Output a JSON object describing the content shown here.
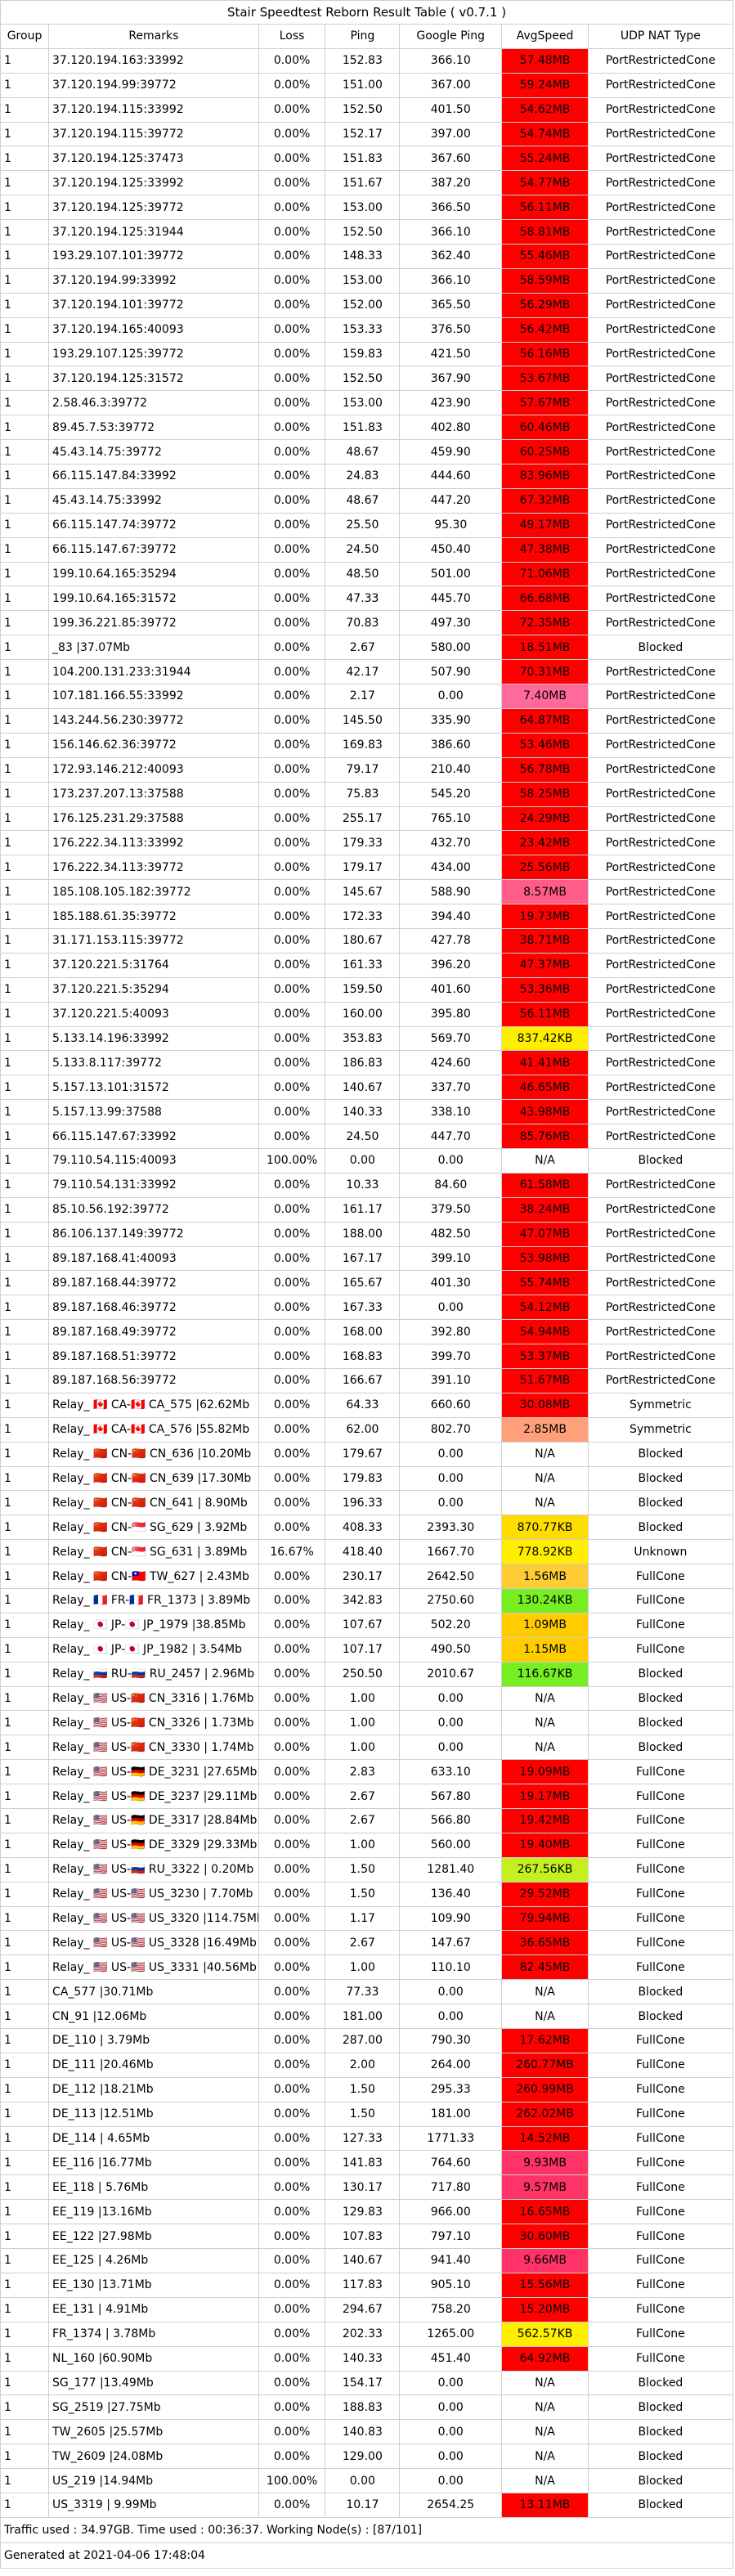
{
  "title": "Stair Speedtest Reborn Result Table ( v0.7.1 )",
  "headers": [
    "Group",
    "Remarks",
    "Loss",
    "Ping",
    "Google Ping",
    "AvgSpeed",
    "UDP NAT Type"
  ],
  "rows": [
    [
      "1",
      "37.120.194.163:33992",
      "0.00%",
      "152.83",
      "366.10",
      "57.48MB",
      "PortRestrictedCone"
    ],
    [
      "1",
      "37.120.194.99:39772",
      "0.00%",
      "151.00",
      "367.00",
      "59.24MB",
      "PortRestrictedCone"
    ],
    [
      "1",
      "37.120.194.115:33992",
      "0.00%",
      "152.50",
      "401.50",
      "54.62MB",
      "PortRestrictedCone"
    ],
    [
      "1",
      "37.120.194.115:39772",
      "0.00%",
      "152.17",
      "397.00",
      "54.74MB",
      "PortRestrictedCone"
    ],
    [
      "1",
      "37.120.194.125:37473",
      "0.00%",
      "151.83",
      "367.60",
      "55.24MB",
      "PortRestrictedCone"
    ],
    [
      "1",
      "37.120.194.125:33992",
      "0.00%",
      "151.67",
      "387.20",
      "54.77MB",
      "PortRestrictedCone"
    ],
    [
      "1",
      "37.120.194.125:39772",
      "0.00%",
      "153.00",
      "366.50",
      "56.11MB",
      "PortRestrictedCone"
    ],
    [
      "1",
      "37.120.194.125:31944",
      "0.00%",
      "152.50",
      "366.10",
      "58.81MB",
      "PortRestrictedCone"
    ],
    [
      "1",
      "193.29.107.101:39772",
      "0.00%",
      "148.33",
      "362.40",
      "55.46MB",
      "PortRestrictedCone"
    ],
    [
      "1",
      "37.120.194.99:33992",
      "0.00%",
      "153.00",
      "366.10",
      "58.59MB",
      "PortRestrictedCone"
    ],
    [
      "1",
      "37.120.194.101:39772",
      "0.00%",
      "152.00",
      "365.50",
      "56.29MB",
      "PortRestrictedCone"
    ],
    [
      "1",
      "37.120.194.165:40093",
      "0.00%",
      "153.33",
      "376.50",
      "56.42MB",
      "PortRestrictedCone"
    ],
    [
      "1",
      "193.29.107.125:39772",
      "0.00%",
      "159.83",
      "421.50",
      "56.16MB",
      "PortRestrictedCone"
    ],
    [
      "1",
      "37.120.194.125:31572",
      "0.00%",
      "152.50",
      "367.90",
      "53.67MB",
      "PortRestrictedCone"
    ],
    [
      "1",
      "2.58.46.3:39772",
      "0.00%",
      "153.00",
      "423.90",
      "57.67MB",
      "PortRestrictedCone"
    ],
    [
      "1",
      "89.45.7.53:39772",
      "0.00%",
      "151.83",
      "402.80",
      "60.46MB",
      "PortRestrictedCone"
    ],
    [
      "1",
      "45.43.14.75:39772",
      "0.00%",
      "48.67",
      "459.90",
      "60.25MB",
      "PortRestrictedCone"
    ],
    [
      "1",
      "66.115.147.84:33992",
      "0.00%",
      "24.83",
      "444.60",
      "83.96MB",
      "PortRestrictedCone"
    ],
    [
      "1",
      "45.43.14.75:33992",
      "0.00%",
      "48.67",
      "447.20",
      "67.32MB",
      "PortRestrictedCone"
    ],
    [
      "1",
      "66.115.147.74:39772",
      "0.00%",
      "25.50",
      "95.30",
      "49.17MB",
      "PortRestrictedCone"
    ],
    [
      "1",
      "66.115.147.67:39772",
      "0.00%",
      "24.50",
      "450.40",
      "47.38MB",
      "PortRestrictedCone"
    ],
    [
      "1",
      "199.10.64.165:35294",
      "0.00%",
      "48.50",
      "501.00",
      "71.06MB",
      "PortRestrictedCone"
    ],
    [
      "1",
      "199.10.64.165:31572",
      "0.00%",
      "47.33",
      "445.70",
      "66.68MB",
      "PortRestrictedCone"
    ],
    [
      "1",
      "199.36.221.85:39772",
      "0.00%",
      "70.83",
      "497.30",
      "72.35MB",
      "PortRestrictedCone"
    ],
    [
      "1",
      "_83 |37.07Mb",
      "0.00%",
      "2.67",
      "580.00",
      "18.51MB",
      "Blocked"
    ],
    [
      "1",
      "104.200.131.233:31944",
      "0.00%",
      "42.17",
      "507.90",
      "70.31MB",
      "PortRestrictedCone"
    ],
    [
      "1",
      "107.181.166.55:33992",
      "0.00%",
      "2.17",
      "0.00",
      "7.40MB",
      "PortRestrictedCone"
    ],
    [
      "1",
      "143.244.56.230:39772",
      "0.00%",
      "145.50",
      "335.90",
      "64.87MB",
      "PortRestrictedCone"
    ],
    [
      "1",
      "156.146.62.36:39772",
      "0.00%",
      "169.83",
      "386.60",
      "53.46MB",
      "PortRestrictedCone"
    ],
    [
      "1",
      "172.93.146.212:40093",
      "0.00%",
      "79.17",
      "210.40",
      "56.78MB",
      "PortRestrictedCone"
    ],
    [
      "1",
      "173.237.207.13:37588",
      "0.00%",
      "75.83",
      "545.20",
      "58.25MB",
      "PortRestrictedCone"
    ],
    [
      "1",
      "176.125.231.29:37588",
      "0.00%",
      "255.17",
      "765.10",
      "24.29MB",
      "PortRestrictedCone"
    ],
    [
      "1",
      "176.222.34.113:33992",
      "0.00%",
      "179.33",
      "432.70",
      "23.42MB",
      "PortRestrictedCone"
    ],
    [
      "1",
      "176.222.34.113:39772",
      "0.00%",
      "179.17",
      "434.00",
      "25.56MB",
      "PortRestrictedCone"
    ],
    [
      "1",
      "185.108.105.182:39772",
      "0.00%",
      "145.67",
      "588.90",
      "8.57MB",
      "PortRestrictedCone"
    ],
    [
      "1",
      "185.188.61.35:39772",
      "0.00%",
      "172.33",
      "394.40",
      "19.73MB",
      "PortRestrictedCone"
    ],
    [
      "1",
      "31.171.153.115:39772",
      "0.00%",
      "180.67",
      "427.78",
      "38.71MB",
      "PortRestrictedCone"
    ],
    [
      "1",
      "37.120.221.5:31764",
      "0.00%",
      "161.33",
      "396.20",
      "47.37MB",
      "PortRestrictedCone"
    ],
    [
      "1",
      "37.120.221.5:35294",
      "0.00%",
      "159.50",
      "401.60",
      "53.36MB",
      "PortRestrictedCone"
    ],
    [
      "1",
      "37.120.221.5:40093",
      "0.00%",
      "160.00",
      "395.80",
      "56.11MB",
      "PortRestrictedCone"
    ],
    [
      "1",
      "5.133.14.196:33992",
      "0.00%",
      "353.83",
      "569.70",
      "837.42KB",
      "PortRestrictedCone"
    ],
    [
      "1",
      "5.133.8.117:39772",
      "0.00%",
      "186.83",
      "424.60",
      "41.41MB",
      "PortRestrictedCone"
    ],
    [
      "1",
      "5.157.13.101:31572",
      "0.00%",
      "140.67",
      "337.70",
      "46.65MB",
      "PortRestrictedCone"
    ],
    [
      "1",
      "5.157.13.99:37588",
      "0.00%",
      "140.33",
      "338.10",
      "43.98MB",
      "PortRestrictedCone"
    ],
    [
      "1",
      "66.115.147.67:33992",
      "0.00%",
      "24.50",
      "447.70",
      "85.76MB",
      "PortRestrictedCone"
    ],
    [
      "1",
      "79.110.54.115:40093",
      "100.00%",
      "0.00",
      "0.00",
      "N/A",
      "Blocked"
    ],
    [
      "1",
      "79.110.54.131:33992",
      "0.00%",
      "10.33",
      "84.60",
      "61.58MB",
      "PortRestrictedCone"
    ],
    [
      "1",
      "85.10.56.192:39772",
      "0.00%",
      "161.17",
      "379.50",
      "38.24MB",
      "PortRestrictedCone"
    ],
    [
      "1",
      "86.106.137.149:39772",
      "0.00%",
      "188.00",
      "482.50",
      "47.07MB",
      "PortRestrictedCone"
    ],
    [
      "1",
      "89.187.168.41:40093",
      "0.00%",
      "167.17",
      "399.10",
      "53.98MB",
      "PortRestrictedCone"
    ],
    [
      "1",
      "89.187.168.44:39772",
      "0.00%",
      "165.67",
      "401.30",
      "55.74MB",
      "PortRestrictedCone"
    ],
    [
      "1",
      "89.187.168.46:39772",
      "0.00%",
      "167.33",
      "0.00",
      "54.12MB",
      "PortRestrictedCone"
    ],
    [
      "1",
      "89.187.168.49:39772",
      "0.00%",
      "168.00",
      "392.80",
      "54.94MB",
      "PortRestrictedCone"
    ],
    [
      "1",
      "89.187.168.51:39772",
      "0.00%",
      "168.83",
      "399.70",
      "53.37MB",
      "PortRestrictedCone"
    ],
    [
      "1",
      "89.187.168.56:39772",
      "0.00%",
      "166.67",
      "391.10",
      "51.67MB",
      "PortRestrictedCone"
    ],
    [
      "1",
      "Relay_ 🇨🇦 CA-🇨🇦 CA_575 |62.62Mb",
      "0.00%",
      "64.33",
      "660.60",
      "30.08MB",
      "Symmetric"
    ],
    [
      "1",
      "Relay_ 🇨🇦 CA-🇨🇦 CA_576 |55.82Mb",
      "0.00%",
      "62.00",
      "802.70",
      "2.85MB",
      "Symmetric"
    ],
    [
      "1",
      "Relay_ 🇨🇳 CN-🇨🇳 CN_636 |10.20Mb",
      "0.00%",
      "179.67",
      "0.00",
      "N/A",
      "Blocked"
    ],
    [
      "1",
      "Relay_ 🇨🇳 CN-🇨🇳 CN_639 |17.30Mb",
      "0.00%",
      "179.83",
      "0.00",
      "N/A",
      "Blocked"
    ],
    [
      "1",
      "Relay_ 🇨🇳 CN-🇨🇳 CN_641 | 8.90Mb",
      "0.00%",
      "196.33",
      "0.00",
      "N/A",
      "Blocked"
    ],
    [
      "1",
      "Relay_ 🇨🇳 CN-🇸🇬 SG_629 | 3.92Mb",
      "0.00%",
      "408.33",
      "2393.30",
      "870.77KB",
      "Blocked"
    ],
    [
      "1",
      "Relay_ 🇨🇳 CN-🇸🇬 SG_631 | 3.89Mb",
      "16.67%",
      "418.40",
      "1667.70",
      "778.92KB",
      "Unknown"
    ],
    [
      "1",
      "Relay_ 🇨🇳 CN-🇹🇼 TW_627 | 2.43Mb",
      "0.00%",
      "230.17",
      "2642.50",
      "1.56MB",
      "FullCone"
    ],
    [
      "1",
      "Relay_ 🇫🇷 FR-🇫🇷 FR_1373 | 3.89Mb",
      "0.00%",
      "342.83",
      "2750.60",
      "130.24KB",
      "FullCone"
    ],
    [
      "1",
      "Relay_ 🇯🇵 JP-🇯🇵 JP_1979 |38.85Mb",
      "0.00%",
      "107.67",
      "502.20",
      "1.09MB",
      "FullCone"
    ],
    [
      "1",
      "Relay_ 🇯🇵 JP-🇯🇵 JP_1982 | 3.54Mb",
      "0.00%",
      "107.17",
      "490.50",
      "1.15MB",
      "FullCone"
    ],
    [
      "1",
      "Relay_ 🇷🇺 RU-🇷🇺 RU_2457 | 2.96Mb",
      "0.00%",
      "250.50",
      "2010.67",
      "116.67KB",
      "Blocked"
    ],
    [
      "1",
      "Relay_ 🇺🇸 US-🇨🇳 CN_3316 | 1.76Mb",
      "0.00%",
      "1.00",
      "0.00",
      "N/A",
      "Blocked"
    ],
    [
      "1",
      "Relay_ 🇺🇸 US-🇨🇳 CN_3326 | 1.73Mb",
      "0.00%",
      "1.00",
      "0.00",
      "N/A",
      "Blocked"
    ],
    [
      "1",
      "Relay_ 🇺🇸 US-🇨🇳 CN_3330 | 1.74Mb",
      "0.00%",
      "1.00",
      "0.00",
      "N/A",
      "Blocked"
    ],
    [
      "1",
      "Relay_ 🇺🇸 US-🇩🇪 DE_3231 |27.65Mb",
      "0.00%",
      "2.83",
      "633.10",
      "19.09MB",
      "FullCone"
    ],
    [
      "1",
      "Relay_ 🇺🇸 US-🇩🇪 DE_3237 |29.11Mb",
      "0.00%",
      "2.67",
      "567.80",
      "19.17MB",
      "FullCone"
    ],
    [
      "1",
      "Relay_ 🇺🇸 US-🇩🇪 DE_3317 |28.84Mb",
      "0.00%",
      "2.67",
      "566.80",
      "19.42MB",
      "FullCone"
    ],
    [
      "1",
      "Relay_ 🇺🇸 US-🇩🇪 DE_3329 |29.33Mb",
      "0.00%",
      "1.00",
      "560.00",
      "19.40MB",
      "FullCone"
    ],
    [
      "1",
      "Relay_ 🇺🇸 US-🇷🇺 RU_3322 | 0.20Mb",
      "0.00%",
      "1.50",
      "1281.40",
      "267.56KB",
      "FullCone"
    ],
    [
      "1",
      "Relay_ 🇺🇸 US-🇺🇸 US_3230 | 7.70Mb",
      "0.00%",
      "1.50",
      "136.40",
      "29.52MB",
      "FullCone"
    ],
    [
      "1",
      "Relay_ 🇺🇸 US-🇺🇸 US_3320 |114.75Mb",
      "0.00%",
      "1.17",
      "109.90",
      "79.94MB",
      "FullCone"
    ],
    [
      "1",
      "Relay_ 🇺🇸 US-🇺🇸 US_3328 |16.49Mb",
      "0.00%",
      "2.67",
      "147.67",
      "36.65MB",
      "FullCone"
    ],
    [
      "1",
      "Relay_ 🇺🇸 US-🇺🇸 US_3331 |40.56Mb",
      "0.00%",
      "1.00",
      "110.10",
      "82.45MB",
      "FullCone"
    ],
    [
      "1",
      "CA_577 |30.71Mb",
      "0.00%",
      "77.33",
      "0.00",
      "N/A",
      "Blocked"
    ],
    [
      "1",
      "CN_91 |12.06Mb",
      "0.00%",
      "181.00",
      "0.00",
      "N/A",
      "Blocked"
    ],
    [
      "1",
      "DE_110 | 3.79Mb",
      "0.00%",
      "287.00",
      "790.30",
      "17.62MB",
      "FullCone"
    ],
    [
      "1",
      "DE_111 |20.46Mb",
      "0.00%",
      "2.00",
      "264.00",
      "260.77MB",
      "FullCone"
    ],
    [
      "1",
      "DE_112 |18.21Mb",
      "0.00%",
      "1.50",
      "295.33",
      "260.99MB",
      "FullCone"
    ],
    [
      "1",
      "DE_113 |12.51Mb",
      "0.00%",
      "1.50",
      "181.00",
      "262.02MB",
      "FullCone"
    ],
    [
      "1",
      "DE_114 | 4.65Mb",
      "0.00%",
      "127.33",
      "1771.33",
      "14.52MB",
      "FullCone"
    ],
    [
      "1",
      "EE_116 |16.77Mb",
      "0.00%",
      "141.83",
      "764.60",
      "9.93MB",
      "FullCone"
    ],
    [
      "1",
      "EE_118 | 5.76Mb",
      "0.00%",
      "130.17",
      "717.80",
      "9.57MB",
      "FullCone"
    ],
    [
      "1",
      "EE_119 |13.16Mb",
      "0.00%",
      "129.83",
      "966.00",
      "16.65MB",
      "FullCone"
    ],
    [
      "1",
      "EE_122 |27.98Mb",
      "0.00%",
      "107.83",
      "797.10",
      "30.60MB",
      "FullCone"
    ],
    [
      "1",
      "EE_125 | 4.26Mb",
      "0.00%",
      "140.67",
      "941.40",
      "9.66MB",
      "FullCone"
    ],
    [
      "1",
      "EE_130 |13.71Mb",
      "0.00%",
      "117.83",
      "905.10",
      "15.56MB",
      "FullCone"
    ],
    [
      "1",
      "EE_131 | 4.91Mb",
      "0.00%",
      "294.67",
      "758.20",
      "15.20MB",
      "FullCone"
    ],
    [
      "1",
      "FR_1374 | 3.78Mb",
      "0.00%",
      "202.33",
      "1265.00",
      "562.57KB",
      "FullCone"
    ],
    [
      "1",
      "NL_160 |60.90Mb",
      "0.00%",
      "140.33",
      "451.40",
      "64.92MB",
      "FullCone"
    ],
    [
      "1",
      "SG_177 |13.49Mb",
      "0.00%",
      "154.17",
      "0.00",
      "N/A",
      "Blocked"
    ],
    [
      "1",
      "SG_2519 |27.75Mb",
      "0.00%",
      "188.83",
      "0.00",
      "N/A",
      "Blocked"
    ],
    [
      "1",
      "TW_2605 |25.57Mb",
      "0.00%",
      "140.83",
      "0.00",
      "N/A",
      "Blocked"
    ],
    [
      "1",
      "TW_2609 |24.08Mb",
      "0.00%",
      "129.00",
      "0.00",
      "N/A",
      "Blocked"
    ],
    [
      "1",
      "US_219 |14.94Mb",
      "100.00%",
      "0.00",
      "0.00",
      "N/A",
      "Blocked"
    ],
    [
      "1",
      "US_3319 | 9.99Mb",
      "0.00%",
      "10.17",
      "2654.25",
      "13.11MB",
      "Blocked"
    ]
  ],
  "speed_colors": [
    "#ff0000",
    "#ff0000",
    "#ff0000",
    "#ff0000",
    "#ff0000",
    "#ff0000",
    "#ff0000",
    "#ff0000",
    "#ff0000",
    "#ff0000",
    "#ff0000",
    "#ff0000",
    "#ff0000",
    "#ff0000",
    "#ff0000",
    "#ff0000",
    "#ff0000",
    "#ff0000",
    "#ff0000",
    "#ff0000",
    "#ff0000",
    "#ff0000",
    "#ff0000",
    "#ff0000",
    "#ff0000",
    "#ff0000",
    "#ff6a9a",
    "#ff0000",
    "#ff0000",
    "#ff0000",
    "#ff0000",
    "#ff0000",
    "#ff0000",
    "#ff0000",
    "#ff5c8a",
    "#ff0000",
    "#ff0000",
    "#ff0000",
    "#ff0000",
    "#ff0000",
    "#ffee00",
    "#ff0000",
    "#ff0000",
    "#ff0000",
    "#ff0000",
    "",
    "#ff0000",
    "#ff0000",
    "#ff0000",
    "#ff0000",
    "#ff0000",
    "#ff0000",
    "#ff0000",
    "#ff0000",
    "#ff0000",
    "#ff0000",
    "#ffa07a",
    "",
    "",
    "",
    "#ffdd00",
    "#ffee00",
    "#ffcc33",
    "#77ee22",
    "#ffcc00",
    "#ffcc00",
    "#77ee22",
    "",
    "",
    "",
    "#ff0000",
    "#ff0000",
    "#ff0000",
    "#ff0000",
    "#c6ef22",
    "#ff0000",
    "#ff0000",
    "#ff0000",
    "#ff0000",
    "",
    "",
    "#ff0000",
    "#ff0000",
    "#ff0000",
    "#ff0000",
    "#ff0000",
    "#ff3366",
    "#ff3366",
    "#ff0000",
    "#ff0000",
    "#ff3366",
    "#ff0000",
    "#ff0000",
    "#ffee00",
    "#ff0000",
    "",
    "",
    "",
    "",
    "",
    "#ff0000"
  ],
  "footer": {
    "traffic": "Traffic used : 34.97GB. Time used : 00:36:37. Working Node(s) : [87/101]",
    "generated": "Generated at 2021-04-06 17:48:04"
  }
}
